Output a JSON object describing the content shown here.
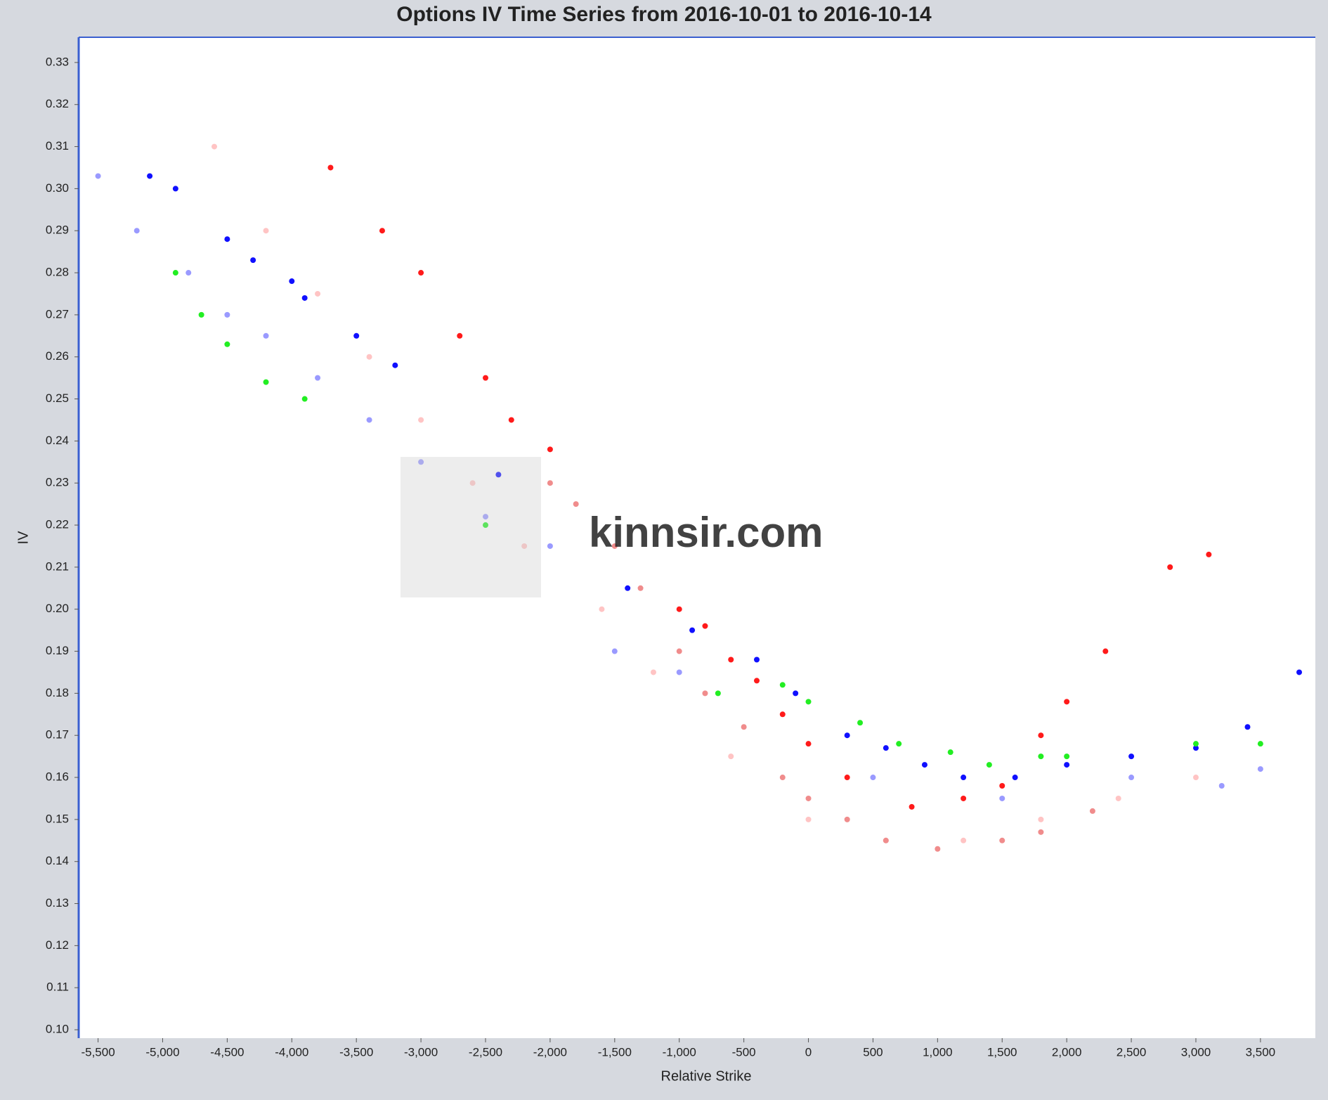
{
  "chart_data": {
    "type": "scatter",
    "title": "Options IV Time Series from 2016-10-01 to 2016-10-14",
    "x_label": "Relative Strike",
    "y_label": "IV",
    "watermark": "kinnsir.com",
    "xlim": [
      -5650,
      3925
    ],
    "ylim": [
      0.098,
      0.336
    ],
    "xticks": [
      {
        "value": -5500,
        "label": "-5,500"
      },
      {
        "value": -5000,
        "label": "-5,000"
      },
      {
        "value": -4500,
        "label": "-4,500"
      },
      {
        "value": -4000,
        "label": "-4,000"
      },
      {
        "value": -3500,
        "label": "-3,500"
      },
      {
        "value": -3000,
        "label": "-3,000"
      },
      {
        "value": -2500,
        "label": "-2,500"
      },
      {
        "value": -2000,
        "label": "-2,000"
      },
      {
        "value": -1500,
        "label": "-1,500"
      },
      {
        "value": -1000,
        "label": "-1,000"
      },
      -500,
      0,
      500,
      {
        "value": 1000,
        "label": "1,000"
      },
      {
        "value": 1500,
        "label": "1,500"
      },
      {
        "value": 2000,
        "label": "2,000"
      },
      {
        "value": 2500,
        "label": "2,500"
      },
      {
        "value": 3000,
        "label": "3,000"
      },
      {
        "value": 3500,
        "label": "3,500"
      }
    ],
    "yticks": [
      {
        "value": 0.1,
        "label": "0.10"
      },
      0.11,
      0.12,
      0.13,
      0.14,
      0.15,
      0.16,
      0.17,
      0.18,
      0.19,
      {
        "value": 0.2,
        "label": "0.20"
      },
      0.21,
      0.22,
      0.23,
      0.24,
      0.25,
      0.26,
      0.27,
      0.28,
      0.29,
      {
        "value": 0.3,
        "label": "0.30"
      },
      0.31,
      0.32,
      0.33
    ],
    "series": [
      {
        "color": "#ffc4c4",
        "x": [
          -4600,
          -4200,
          -3800,
          -3400,
          -3000,
          -2600,
          -2200,
          -1600,
          -1200,
          -600,
          0,
          600,
          1200,
          1800,
          2400,
          3000
        ],
        "values": [
          0.31,
          0.29,
          0.275,
          0.26,
          0.245,
          0.23,
          0.215,
          0.2,
          0.185,
          0.165,
          0.15,
          0.145,
          0.145,
          0.15,
          0.155,
          0.16
        ]
      },
      {
        "color": "#f08c8c",
        "x": [
          -2000,
          -1800,
          -1500,
          -1300,
          -1000,
          -800,
          -500,
          -200,
          0,
          300,
          600,
          1000,
          1500,
          1800,
          2200
        ],
        "values": [
          0.23,
          0.225,
          0.215,
          0.205,
          0.19,
          0.18,
          0.172,
          0.16,
          0.155,
          0.15,
          0.145,
          0.143,
          0.145,
          0.147,
          0.152
        ]
      },
      {
        "color": "#9a9aff",
        "x": [
          -5500,
          -5200,
          -4800,
          -4500,
          -4200,
          -3800,
          -3400,
          -3000,
          -2500,
          -2000,
          -1500,
          -1000,
          500,
          1500,
          2500,
          3200,
          3500
        ],
        "values": [
          0.303,
          0.29,
          0.28,
          0.27,
          0.265,
          0.255,
          0.245,
          0.235,
          0.222,
          0.215,
          0.19,
          0.185,
          0.16,
          0.155,
          0.16,
          0.158,
          0.162
        ]
      },
      {
        "color": "#ff1a1a",
        "x": [
          -3700,
          -3300,
          -3000,
          -2700,
          -2500,
          -2300,
          -2000,
          -1000,
          -800,
          -600,
          -400,
          -200,
          0,
          300,
          800,
          1200,
          1500,
          1800,
          2000,
          2300,
          2800,
          3100
        ],
        "values": [
          0.305,
          0.29,
          0.28,
          0.265,
          0.255,
          0.245,
          0.238,
          0.2,
          0.196,
          0.188,
          0.183,
          0.175,
          0.168,
          0.16,
          0.153,
          0.155,
          0.158,
          0.17,
          0.178,
          0.19,
          0.21,
          0.213
        ]
      },
      {
        "color": "#1010ff",
        "x": [
          -5100,
          -4900,
          -4500,
          -4300,
          -4000,
          -3900,
          -3500,
          -3200,
          -2400,
          -1400,
          -900,
          -400,
          -100,
          300,
          600,
          900,
          1200,
          1600,
          2000,
          2500,
          3000,
          3400,
          3800
        ],
        "values": [
          0.303,
          0.3,
          0.288,
          0.283,
          0.278,
          0.274,
          0.265,
          0.258,
          0.232,
          0.205,
          0.195,
          0.188,
          0.18,
          0.17,
          0.167,
          0.163,
          0.16,
          0.16,
          0.163,
          0.165,
          0.167,
          0.172,
          0.185
        ]
      },
      {
        "color": "#22ee22",
        "x": [
          -4900,
          -4700,
          -4500,
          -4200,
          -3900,
          -2500,
          -700,
          -200,
          0,
          400,
          700,
          1100,
          1400,
          1800,
          2000,
          3000,
          3500
        ],
        "values": [
          0.28,
          0.27,
          0.263,
          0.254,
          0.25,
          0.22,
          0.18,
          0.182,
          0.178,
          0.173,
          0.168,
          0.166,
          0.163,
          0.165,
          0.165,
          0.168,
          0.168
        ]
      }
    ]
  }
}
